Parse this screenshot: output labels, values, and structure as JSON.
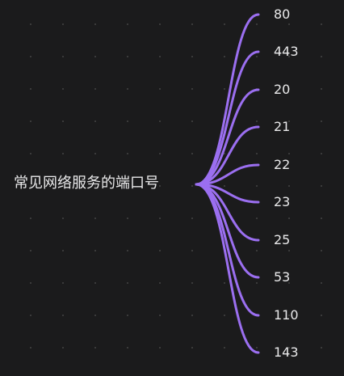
{
  "mindmap": {
    "root": "常见网络服务的端口号",
    "children": [
      {
        "label": "80"
      },
      {
        "label": "443"
      },
      {
        "label": "20"
      },
      {
        "label": "21"
      },
      {
        "label": "22"
      },
      {
        "label": "23"
      },
      {
        "label": "25"
      },
      {
        "label": "53"
      },
      {
        "label": "110"
      },
      {
        "label": "143"
      }
    ]
  },
  "colors": {
    "background": "#1b1b1c",
    "branch": "#9b6ff0",
    "text": "#e9e9ea"
  }
}
